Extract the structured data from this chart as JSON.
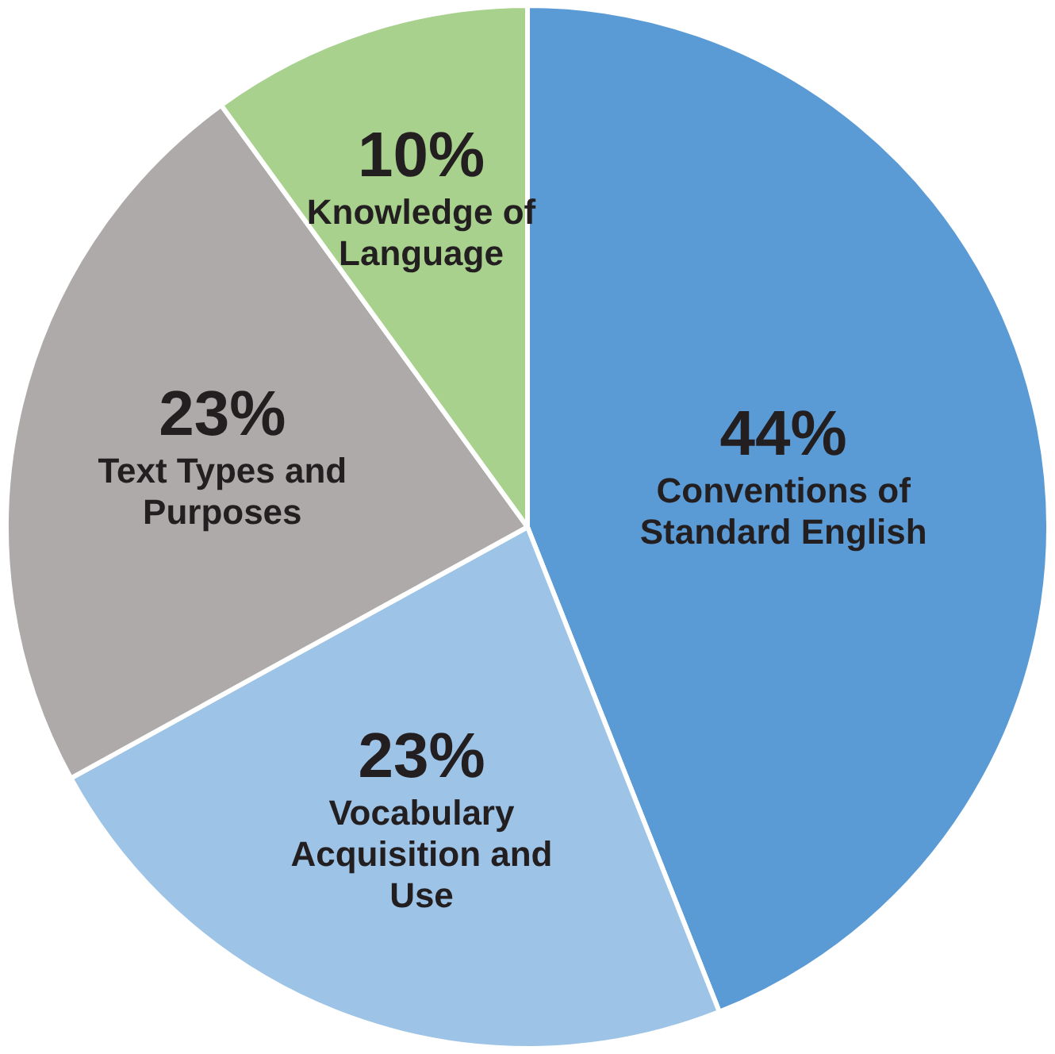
{
  "chart_data": {
    "type": "pie",
    "categories": [
      "Conventions of Standard English",
      "Vocabulary Acquisition and Use",
      "Text Types and Purposes",
      "Knowledge of Language"
    ],
    "values": [
      44,
      23,
      23,
      10
    ],
    "colors": [
      "#5b9bd5",
      "#9dc3e6",
      "#aeaaaa",
      "#a9d18e"
    ],
    "value_labels": [
      "44%",
      "23%",
      "23%",
      "10%"
    ],
    "legend": false
  }
}
